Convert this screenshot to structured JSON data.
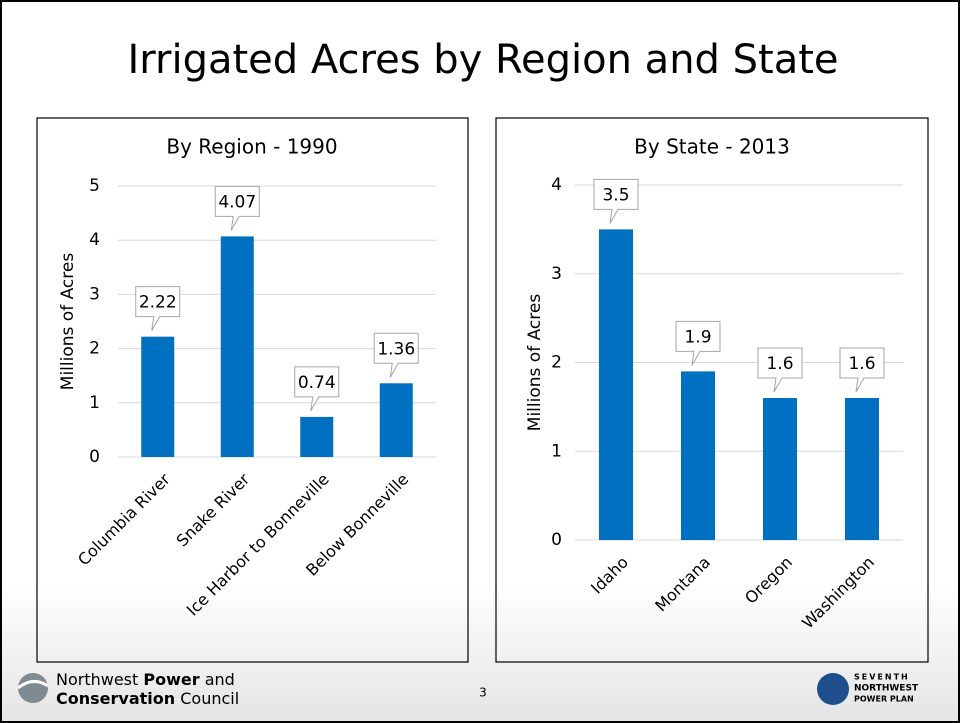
{
  "title": "Irrigated Acres by Region and State",
  "chart_data": [
    {
      "type": "bar",
      "title": "By Region - 1990",
      "y_label": "Millions of Acres",
      "categories": [
        "Columbia River",
        "Snake River",
        "Ice Harbor to Bonneville",
        "Below Bonneville"
      ],
      "values": [
        2.22,
        4.07,
        0.74,
        1.36
      ],
      "color": "#0070c0",
      "ylim": [
        0,
        5
      ],
      "yticks": [
        0,
        1,
        2,
        3,
        4,
        5
      ],
      "grid": true
    },
    {
      "type": "bar",
      "title": "By State - 2013",
      "y_label": "Millions of Acres",
      "categories": [
        "Idaho",
        "Montana",
        "Oregon",
        "Washington"
      ],
      "values": [
        3.5,
        1.9,
        1.6,
        1.6
      ],
      "color": "#0070c0",
      "ylim": [
        0,
        4
      ],
      "yticks": [
        0,
        1,
        2,
        3,
        4
      ],
      "grid": true
    }
  ],
  "footer": {
    "org_lines": [
      [
        "Northwest",
        "Power",
        "and"
      ],
      [
        "Conservation",
        "Council"
      ]
    ],
    "page_number": 3,
    "logo_lines": [
      "SEVENTH",
      "NORTHWEST",
      "POWER PLAN"
    ]
  }
}
